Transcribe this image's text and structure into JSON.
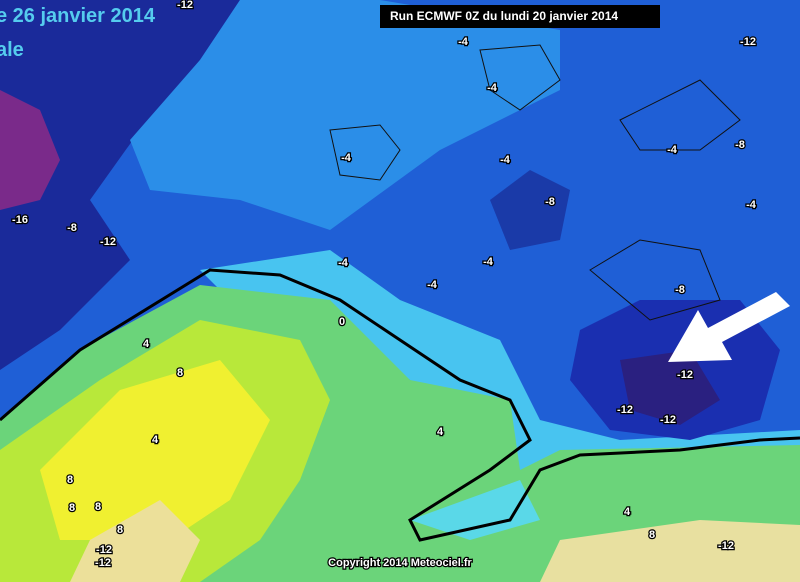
{
  "header": {
    "title": "e 26 janvier 2014",
    "subtitle": "ale",
    "run": "Run ECMWF 0Z du lundi 20 janvier 2014"
  },
  "map": {
    "contour_labels": [
      "-12",
      "-4",
      "-12",
      "-4",
      "-4",
      "-4",
      "-4",
      "-8",
      "-8",
      "-4",
      "-16",
      "-8",
      "-12",
      "-4",
      "-4",
      "-4",
      "-8",
      "0",
      "4",
      "8",
      "-12",
      "-12",
      "-12",
      "4",
      "4",
      "8",
      "8",
      "8",
      "4",
      "8",
      "-12",
      "-12",
      "-12",
      "8"
    ]
  },
  "footer": {
    "copyright": "Copyright 2014 Meteociel.fr"
  }
}
